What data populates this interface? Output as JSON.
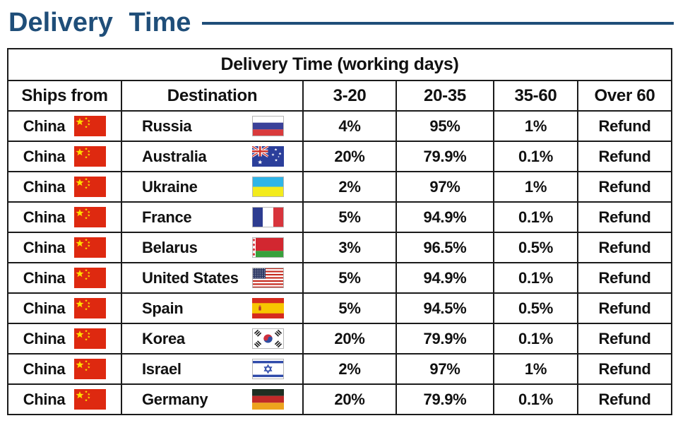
{
  "page": {
    "title": "Delivery Time",
    "accent_color": "#1f4e79"
  },
  "table": {
    "caption": "Delivery Time (working days)",
    "columns": [
      "Ships from",
      "Destination",
      "3-20",
      "20-35",
      "35-60",
      "Over 60"
    ],
    "rows": [
      {
        "ships_from": "China",
        "ships_from_flag": "china-flag",
        "destination": "Russia",
        "destination_flag": "russia-flag",
        "values": [
          "4%",
          "95%",
          "1%",
          "Refund"
        ]
      },
      {
        "ships_from": "China",
        "ships_from_flag": "china-flag",
        "destination": "Australia",
        "destination_flag": "australia-flag",
        "values": [
          "20%",
          "79.9%",
          "0.1%",
          "Refund"
        ]
      },
      {
        "ships_from": "China",
        "ships_from_flag": "china-flag",
        "destination": "Ukraine",
        "destination_flag": "ukraine-flag",
        "values": [
          "2%",
          "97%",
          "1%",
          "Refund"
        ]
      },
      {
        "ships_from": "China",
        "ships_from_flag": "china-flag",
        "destination": "France",
        "destination_flag": "france-flag",
        "values": [
          "5%",
          "94.9%",
          "0.1%",
          "Refund"
        ]
      },
      {
        "ships_from": "China",
        "ships_from_flag": "china-flag",
        "destination": "Belarus",
        "destination_flag": "belarus-flag",
        "values": [
          "3%",
          "96.5%",
          "0.5%",
          "Refund"
        ]
      },
      {
        "ships_from": "China",
        "ships_from_flag": "china-flag",
        "destination": "United States",
        "destination_flag": "united-states-flag",
        "values": [
          "5%",
          "94.9%",
          "0.1%",
          "Refund"
        ]
      },
      {
        "ships_from": "China",
        "ships_from_flag": "china-flag",
        "destination": "Spain",
        "destination_flag": "spain-flag",
        "values": [
          "5%",
          "94.5%",
          "0.5%",
          "Refund"
        ]
      },
      {
        "ships_from": "China",
        "ships_from_flag": "china-flag",
        "destination": "Korea",
        "destination_flag": "korea-flag",
        "values": [
          "20%",
          "79.9%",
          "0.1%",
          "Refund"
        ]
      },
      {
        "ships_from": "China",
        "ships_from_flag": "china-flag",
        "destination": "Israel",
        "destination_flag": "israel-flag",
        "values": [
          "2%",
          "97%",
          "1%",
          "Refund"
        ]
      },
      {
        "ships_from": "China",
        "ships_from_flag": "china-flag",
        "destination": "Germany",
        "destination_flag": "germany-flag",
        "values": [
          "20%",
          "79.9%",
          "0.1%",
          "Refund"
        ]
      }
    ]
  }
}
